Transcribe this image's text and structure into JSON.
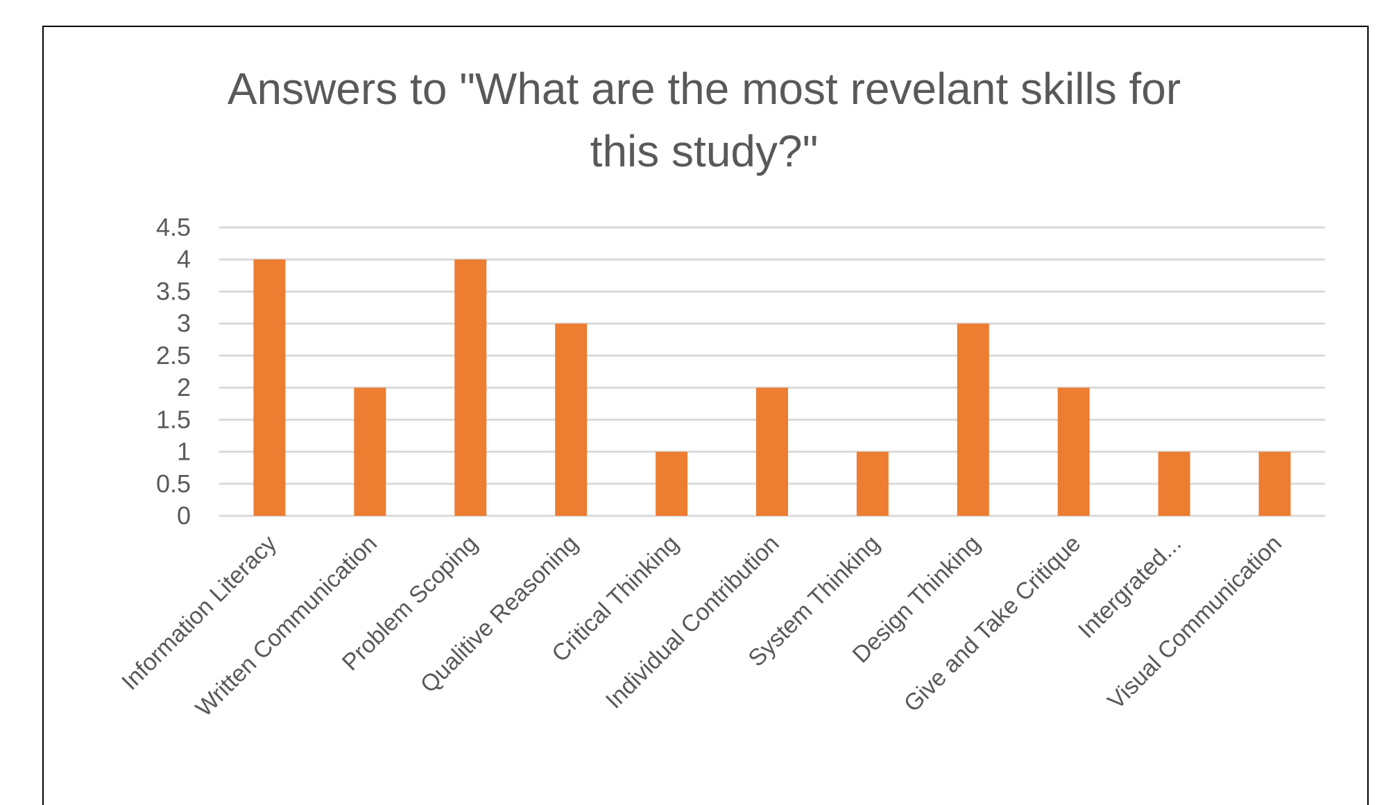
{
  "chart_data": {
    "type": "bar",
    "title_lines": [
      "Answers to \"What are the most revelant skills for",
      "this study?\""
    ],
    "categories": [
      "Information Literacy",
      "Written Communication",
      "Problem Scoping",
      "Qualitive Reasoning",
      "Critical Thinking",
      "Individual Contribution",
      "System Thinking",
      "Design Thinking",
      "Give and Take Critique",
      "Intergrated...",
      "Visual Communication"
    ],
    "values": [
      4,
      2,
      4,
      3,
      1,
      2,
      1,
      3,
      2,
      1,
      1
    ],
    "yticks": [
      "0",
      "0.5",
      "1",
      "1.5",
      "2",
      "2.5",
      "3",
      "3.5",
      "4",
      "4.5"
    ],
    "ylim": [
      0,
      4.5
    ],
    "grid": true,
    "legend": "none",
    "colors": {
      "bar": "#ED7D31",
      "gridline": "#D9D9D9",
      "text": "#595959",
      "frame": "#000000"
    }
  }
}
